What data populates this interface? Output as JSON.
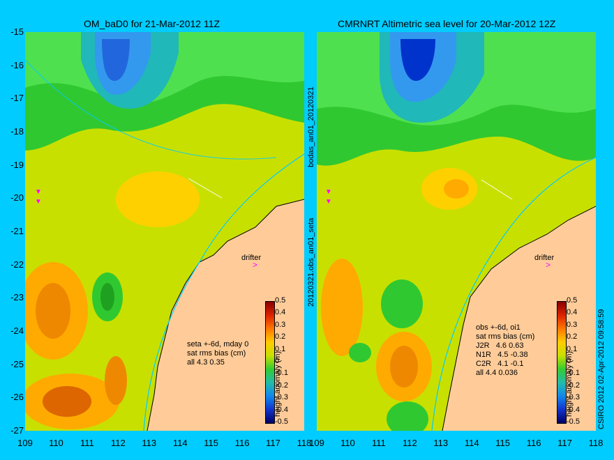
{
  "left_panel": {
    "title": "OM_baD0 for 21-Mar-2012 11Z",
    "notes": [
      "seta +-6d, mday 0",
      "sat rms bias (cm)",
      "all 4.3 0.35"
    ],
    "drifter_label": "drifter"
  },
  "right_panel": {
    "title": "CMRNRT Altimetric sea level  for 20-Mar-2012 12Z",
    "notes": [
      "obs +-6d, oi1",
      "sat rms bias (cm)",
      "J2R   4.6 0.63",
      "N1R   4.5 -0.38",
      "C2R   4.1 -0.1",
      "all 4.4 0.036"
    ],
    "drifter_label": "drifter"
  },
  "middle_label_top": "bodas_an01_20120321",
  "middle_label_bottom": "20120321.obs_an01_seta",
  "credit": "CSIRO 2012   02-Apr-2012 09:58:59",
  "axes": {
    "y_ticks": [
      "-15",
      "-16",
      "-17",
      "-18",
      "-19",
      "-20",
      "-21",
      "-22",
      "-23",
      "-24",
      "-25",
      "-26",
      "-27"
    ],
    "x_ticks_left": [
      "109",
      "110",
      "111",
      "112",
      "113",
      "114",
      "115",
      "116",
      "117",
      "118"
    ],
    "x_ticks_right": [
      "109",
      "110",
      "111",
      "112",
      "113",
      "114",
      "115",
      "116",
      "117",
      "118"
    ]
  },
  "colorbar": {
    "label": "height anomaly (m)",
    "ticks": [
      "0.5",
      "0.4",
      "0.3",
      "0.2",
      "0.1",
      "0",
      "-0.1",
      "-0.2",
      "-0.3",
      "-0.4",
      "-0.5"
    ]
  },
  "colors": {
    "background": "#00ccff",
    "land": "#ffcc99",
    "trough": "#0033cc",
    "high": "#ee7700"
  }
}
